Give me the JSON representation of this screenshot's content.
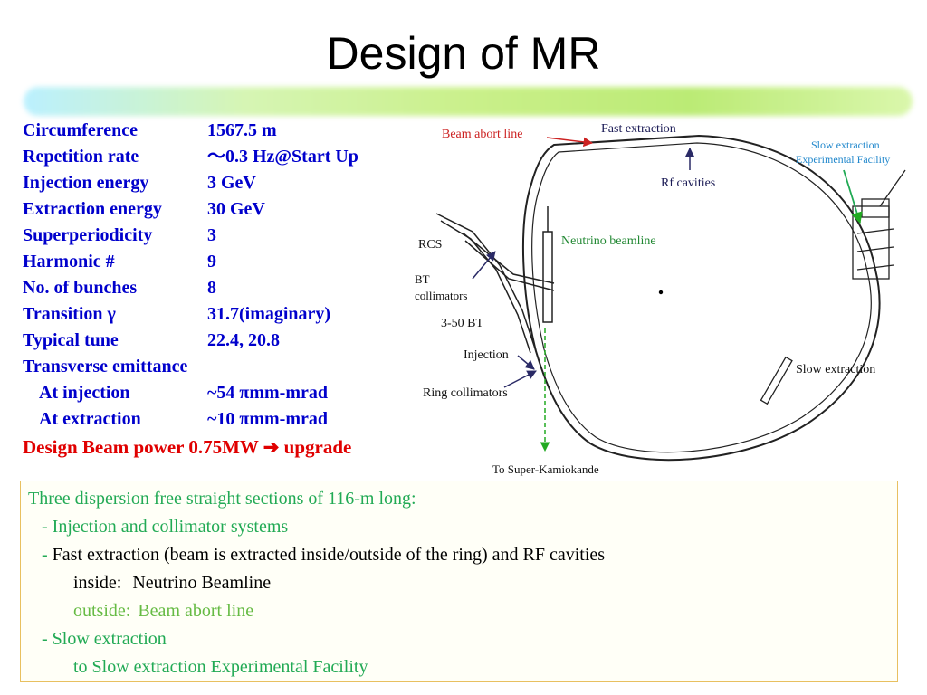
{
  "title": "Design of MR",
  "parameters": [
    {
      "label": "Circumference",
      "value": "1567.5 m"
    },
    {
      "label": "Repetition rate",
      "value": "～0.3 Hz@Start Up"
    },
    {
      "label": "Injection energy",
      "value": "3 GeV"
    },
    {
      "label": "Extraction energy",
      "value": "30 GeV"
    },
    {
      "label": "Superperiodicity",
      "value": "3"
    },
    {
      "label": "Harmonic #",
      "value": "9"
    },
    {
      "label": "No. of bunches",
      "value": "8"
    },
    {
      "label": "Transition γ",
      "value": "31.7(imaginary)"
    },
    {
      "label": "Typical tune",
      "value": "22.4, 20.8"
    },
    {
      "label": "Transverse emittance",
      "value": ""
    },
    {
      "label": "At injection",
      "value": "~54 πmm-mrad"
    },
    {
      "label": "At extraction",
      "value": "~10  πmm-mrad"
    }
  ],
  "beam_power": {
    "text": "Design Beam power 0.75MW",
    "arrow": "➔",
    "upgrade": "upgrade"
  },
  "diagram": {
    "beam_abort_line": "Beam abort line",
    "fast_extraction": "Fast extraction",
    "rf_cavities": "Rf cavities",
    "slow_extraction_facility_1": "Slow extraction",
    "slow_extraction_facility_2": "Experimental Facility",
    "rcs": "RCS",
    "neutrino_beamline": "Neutrino beamline",
    "bt": "BT",
    "collimators": "collimators",
    "bt_3_50": "3-50 BT",
    "injection": "Injection",
    "ring_collimators": "Ring collimators",
    "slow_extraction": "Slow extraction",
    "to_super_kamiokande": "To Super-Kamiokande",
    "colors": {
      "abort_label": "#cc2222",
      "facility_label": "#2288cc",
      "neutrino_label": "#228833",
      "beam_arrow": "#22aa22"
    }
  },
  "summary": {
    "line1": "Three dispersion free straight sections of 116-m long:",
    "line2": "   - Injection and collimator systems",
    "line3_dash": "   - ",
    "line3_text": "Fast extraction (beam is extracted inside/outside of the ring) and RF cavities",
    "line4_label": "inside:",
    "line4_value": "Neutrino Beamline",
    "line5_label": "outside:",
    "line5_value": "Beam abort line",
    "line6": "   - Slow extraction",
    "line7": "to Slow extraction Experimental Facility"
  }
}
